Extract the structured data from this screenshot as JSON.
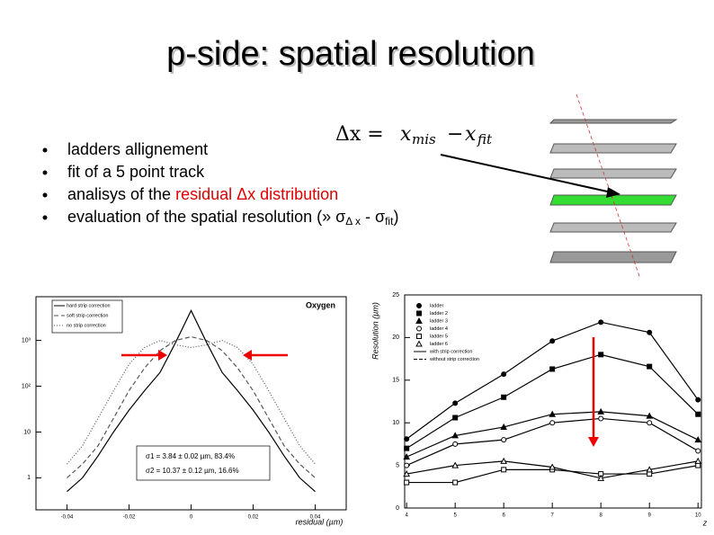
{
  "title": "p-side: spatial resolution",
  "formula": {
    "lhs": "Δx =",
    "x1": "x",
    "sub1": "mis",
    "minus": "−",
    "x2": "x",
    "sub2": "fit"
  },
  "bullets": [
    [
      {
        "text": "ladders allignement"
      }
    ],
    [
      {
        "text": "fit of a 5 point track"
      }
    ],
    [
      {
        "text": "analisys of the "
      },
      {
        "text": "residual Δx distribution",
        "color": "#e00000"
      }
    ],
    [
      {
        "text": "evaluation of the spatial resolution (» σ"
      },
      {
        "text": "Δ x",
        "sub": true
      },
      {
        "text": " - σ"
      },
      {
        "text": "fit",
        "sub": true
      },
      {
        "text": ")"
      }
    ]
  ],
  "chart_data": [
    {
      "type": "line",
      "log_y": true,
      "x_label": "residual  (µm)",
      "annotations": [
        "Oxygen",
        "σ1 = 3.84 ± 0.02 µm,  83.4%",
        "σ2 = 10.37 ± 0.12 µm,  16.6%"
      ],
      "x": [
        -0.04,
        -0.035,
        -0.03,
        -0.025,
        -0.02,
        -0.015,
        -0.01,
        -0.005,
        0,
        0.005,
        0.01,
        0.015,
        0.02,
        0.025,
        0.03,
        0.035,
        0.04
      ],
      "xlim": [
        -0.05,
        0.05
      ],
      "xticks": [
        -0.04,
        -0.02,
        0,
        0.02,
        0.04
      ],
      "ylim": [
        0.2,
        9000
      ],
      "yticks": [
        {
          "value": 1000,
          "label": "10³"
        },
        {
          "value": 100,
          "label": "10²"
        },
        10,
        1
      ],
      "series": [
        {
          "name": "hard strip correction",
          "color": "#000000",
          "dash": "none",
          "values": [
            0.5,
            1,
            3,
            10,
            30,
            80,
            200,
            900,
            4500,
            900,
            200,
            80,
            30,
            10,
            3,
            1,
            0.5
          ]
        },
        {
          "name": "soft strip correction",
          "color": "#555555",
          "dash": "5,3",
          "values": [
            1,
            2,
            5,
            20,
            80,
            250,
            600,
            1000,
            1200,
            1000,
            600,
            250,
            80,
            20,
            5,
            2,
            1
          ]
        },
        {
          "name": "no strip correction",
          "color": "#555555",
          "dash": "1,2",
          "values": [
            2,
            5,
            20,
            80,
            300,
            700,
            1000,
            800,
            700,
            800,
            1000,
            700,
            300,
            80,
            20,
            5,
            2
          ]
        }
      ]
    },
    {
      "type": "line",
      "log_y": false,
      "y_label": "Resolution (µm)",
      "x_label": "z",
      "x": [
        4,
        5,
        6,
        7,
        8,
        9,
        10
      ],
      "xlim": [
        3.96,
        10.07
      ],
      "xticks": [
        4,
        5,
        6,
        7,
        8,
        9,
        10
      ],
      "ylim": [
        0,
        25
      ],
      "yticks": [
        0,
        5,
        10,
        15,
        20,
        25
      ],
      "line_legend": [
        "with strip correction",
        "without strip correction"
      ],
      "series": [
        {
          "name": "ladder",
          "color": "#000000",
          "marker": "circle",
          "filled": true,
          "values": [
            8.1,
            12.3,
            15.7,
            19.6,
            21.8,
            20.6,
            12.7
          ]
        },
        {
          "name": "ladder 2",
          "color": "#000000",
          "marker": "square",
          "filled": true,
          "values": [
            7.0,
            10.6,
            13.0,
            16.3,
            18.0,
            16.6,
            11.0
          ]
        },
        {
          "name": "ladder 3",
          "color": "#000000",
          "marker": "triangle",
          "filled": true,
          "values": [
            6.0,
            8.5,
            9.5,
            11.0,
            11.3,
            10.8,
            8.0
          ]
        },
        {
          "name": "ladder 4",
          "color": "#000000",
          "marker": "circle",
          "filled": false,
          "values": [
            5.0,
            7.5,
            8.0,
            10.0,
            10.5,
            10.0,
            6.7
          ]
        },
        {
          "name": "ladder 5",
          "color": "#000000",
          "marker": "square",
          "filled": false,
          "values": [
            3.0,
            3.0,
            4.5,
            4.5,
            4.0,
            4.0,
            5.0
          ]
        },
        {
          "name": "ladder 6",
          "color": "#000000",
          "marker": "triangle",
          "filled": false,
          "values": [
            4.0,
            5.0,
            5.5,
            4.8,
            3.5,
            4.5,
            5.5
          ]
        }
      ]
    }
  ]
}
